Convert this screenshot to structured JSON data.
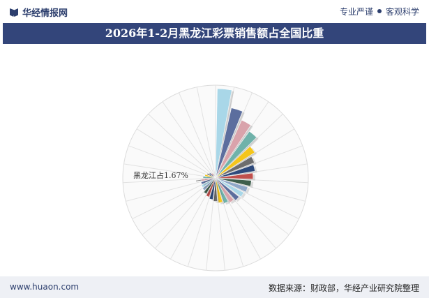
{
  "header": {
    "brand": "华经情报网",
    "slogan_left": "专业严谨",
    "slogan_right": "客观科学"
  },
  "chart_data": {
    "type": "rose",
    "title": "2026年1-2月黑龙江彩票销售额占全国比重",
    "categories": [
      null,
      null,
      null,
      null,
      null,
      null,
      null,
      null,
      null,
      null,
      null,
      null,
      null,
      null,
      null,
      null,
      null,
      null,
      null,
      null,
      null,
      null,
      null,
      null,
      null,
      null,
      null,
      null,
      null,
      null,
      null
    ],
    "values": [
      10.7,
      8.6,
      7.6,
      6.9,
      5.6,
      5.0,
      4.8,
      4.5,
      4.3,
      4.0,
      3.8,
      3.6,
      3.4,
      3.2,
      3.0,
      2.8,
      2.6,
      2.4,
      2.2,
      2.0,
      1.9,
      1.8,
      1.67,
      1.5,
      1.3,
      1.1,
      0.9,
      0.7,
      0.5,
      0.3,
      0.2
    ],
    "value_labels": [
      null,
      null,
      null,
      null,
      null,
      null,
      null,
      null,
      null,
      null,
      null,
      null,
      null,
      null,
      null,
      null,
      null,
      null,
      null,
      null,
      null,
      null,
      "黑龙江占1.67%",
      null,
      null,
      null,
      null,
      null,
      null,
      null,
      null
    ],
    "colors": [
      "#a9d7e8",
      "#5c6e9e",
      "#d9a3ab",
      "#6fb2aa",
      "#f4c51c",
      "#6d6d6d",
      "#2e4a7c",
      "#c0504d",
      "#3d5e4c",
      "#8fa8c8"
    ]
  },
  "footer": {
    "website": "www.huaon.com",
    "source": "数据来源：财政部，华经产业研究院整理"
  }
}
